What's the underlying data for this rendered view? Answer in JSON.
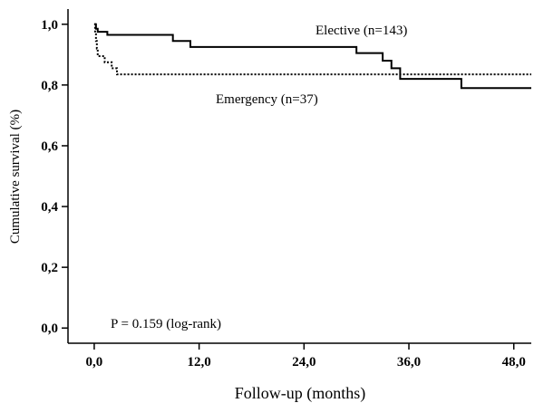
{
  "chart_data": {
    "type": "line",
    "title": "",
    "xlabel": "Follow-up (months)",
    "ylabel": "Cumulative survival (%)",
    "xlim": [
      -3,
      50
    ],
    "ylim": [
      -0.05,
      1.05
    ],
    "x_ticks": [
      0,
      12,
      24,
      36,
      48
    ],
    "x_tick_labels": [
      "0,0",
      "12,0",
      "24,0",
      "36,0",
      "48,0"
    ],
    "y_ticks": [
      0,
      0.2,
      0.4,
      0.6,
      0.8,
      1.0
    ],
    "y_tick_labels": [
      "0,0",
      "0,2",
      "0,4",
      "0,6",
      "0,8",
      "1,0"
    ],
    "grid": false,
    "annotation": "P = 0.159 (log-rank)",
    "series": [
      {
        "name": "Elective (n=143)",
        "style": "solid",
        "color": "#000000",
        "steps": [
          [
            0,
            1.0
          ],
          [
            0.2,
            0.985
          ],
          [
            0.4,
            0.975
          ],
          [
            1.5,
            0.965
          ],
          [
            9.0,
            0.945
          ],
          [
            11.0,
            0.925
          ],
          [
            30.0,
            0.905
          ],
          [
            33.0,
            0.88
          ],
          [
            34.0,
            0.855
          ],
          [
            35.0,
            0.82
          ],
          [
            42.0,
            0.79
          ],
          [
            50.0,
            0.79
          ]
        ]
      },
      {
        "name": "Emergency (n=37)",
        "style": "dotted",
        "color": "#000000",
        "steps": [
          [
            0,
            1.0
          ],
          [
            0.1,
            0.97
          ],
          [
            0.2,
            0.945
          ],
          [
            0.3,
            0.92
          ],
          [
            0.4,
            0.895
          ],
          [
            1.2,
            0.875
          ],
          [
            2.0,
            0.855
          ],
          [
            2.6,
            0.835
          ],
          [
            50.0,
            0.835
          ]
        ]
      }
    ]
  }
}
